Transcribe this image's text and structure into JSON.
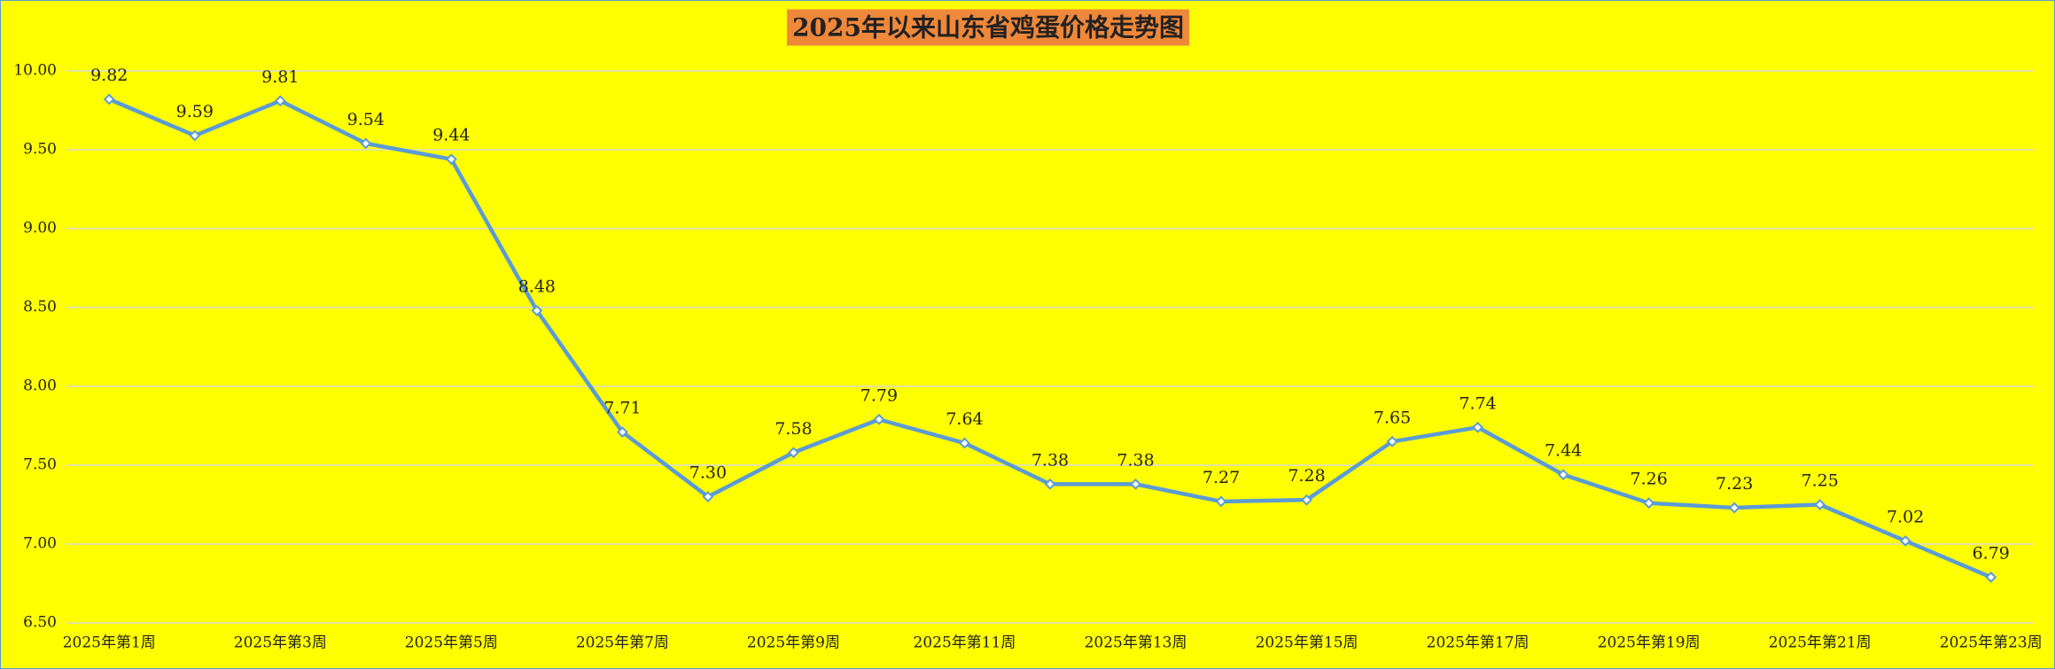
{
  "chart_data": {
    "type": "line",
    "title": "2025年以来山东省鸡蛋价格走势图",
    "categories": [
      "2025年第1周",
      null,
      "2025年第3周",
      null,
      "2025年第5周",
      null,
      "2025年第7周",
      null,
      "2025年第9周",
      null,
      "2025年第11周",
      null,
      "2025年第13周",
      null,
      "2025年第15周",
      null,
      "2025年第17周",
      null,
      "2025年第19周",
      null,
      "2025年第21周",
      null,
      "2025年第23周"
    ],
    "values": [
      9.82,
      9.59,
      9.81,
      9.54,
      9.44,
      8.48,
      7.71,
      7.3,
      7.58,
      7.79,
      7.64,
      7.38,
      7.38,
      7.27,
      7.28,
      7.65,
      7.74,
      7.44,
      7.26,
      7.23,
      7.25,
      7.02,
      6.79
    ],
    "value_labels": [
      "9.82",
      "9.59",
      "9.81",
      "9.54",
      "9.44",
      "8.48",
      "7.71",
      "7.30",
      "7.58",
      "7.79",
      "7.64",
      "7.38",
      "7.38",
      "7.27",
      "7.28",
      "7.65",
      "7.74",
      "7.44",
      "7.26",
      "7.23",
      "7.25",
      "7.02",
      "6.79"
    ],
    "color": "#5b9bd5",
    "ylim": [
      6.5,
      10
    ],
    "yticks": [
      {
        "value": 6.5,
        "label": "6.50"
      },
      {
        "value": 7,
        "label": "7.00"
      },
      {
        "value": 7.5,
        "label": "7.50"
      },
      {
        "value": 8,
        "label": "8.00"
      },
      {
        "value": 8.5,
        "label": "8.50"
      },
      {
        "value": 9,
        "label": "9.00"
      },
      {
        "value": 9.5,
        "label": "9.50"
      },
      {
        "value": 10,
        "label": "10.00"
      }
    ],
    "grid": true
  }
}
